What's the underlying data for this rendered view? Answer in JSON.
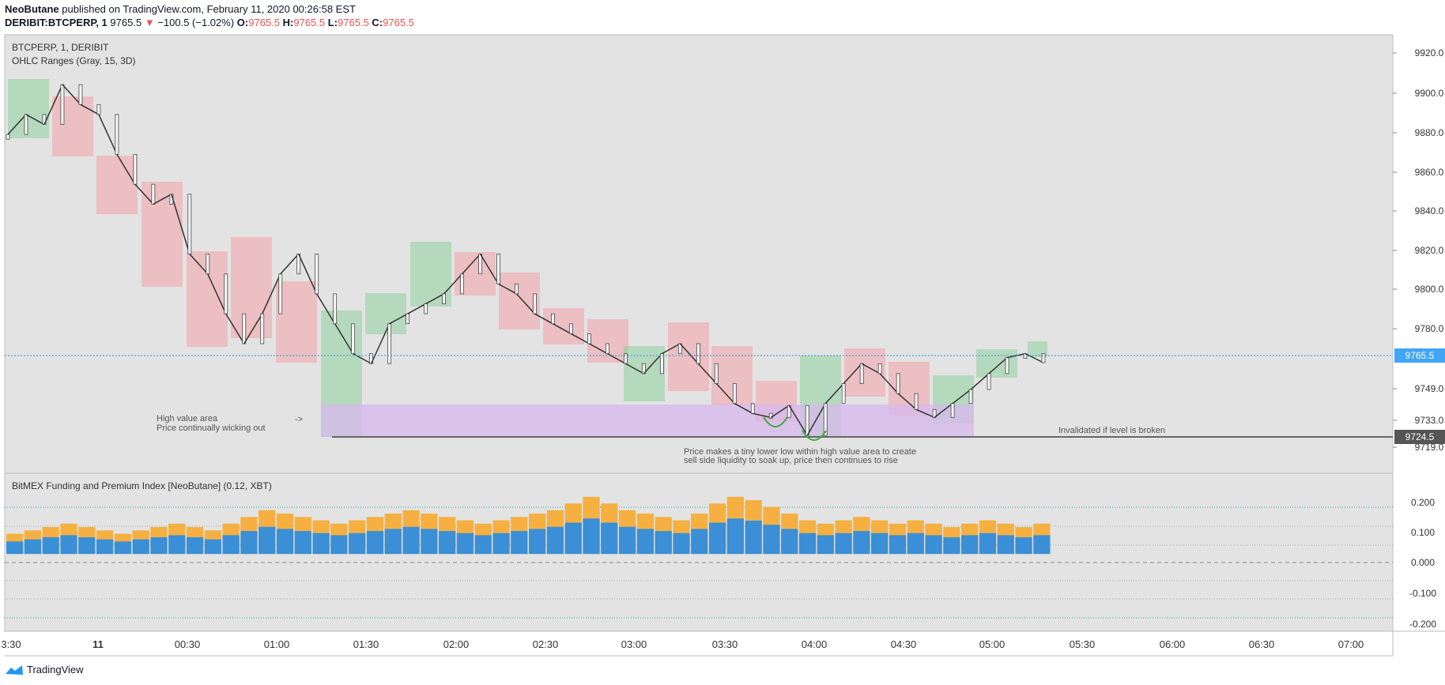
{
  "header": {
    "publisher": "NeoButane",
    "published_text": "published on TradingView.com, February 11, 2020 00:26:58 EST",
    "symbol": "DERIBIT:BTCPERP, 1",
    "last": "9765.5",
    "change": "−100.5 (−1.02%)",
    "o_label": "O:",
    "o_value": "9765.5",
    "h_label": "H:",
    "h_value": "9765.5",
    "l_label": "L:",
    "l_value": "9765.5",
    "c_label": "C:",
    "c_value": "9765.5"
  },
  "main_pane": {
    "title": "BTCPERP, 1, DERIBIT",
    "indicator": "OHLC Ranges (Gray, 15, 3D)",
    "price_ticks": [
      "9920.0",
      "9900.0",
      "9880.0",
      "9860.0",
      "9840.0",
      "9820.0",
      "9800.0",
      "9780.0",
      "9749.0",
      "9733.0",
      "9719.0"
    ],
    "last_price_badge": "9765.5",
    "level_badge": "9724.5",
    "annotations": {
      "hva_1": "High value area",
      "hva_2": "Price continually wicking out",
      "hva_arrow": "->",
      "lower_low_1": "Price makes a tiny lower low within high value area to create",
      "lower_low_2": "sell side liquidity to soak up, price then continues to rise",
      "invalidated": "Invalidated if level is broken"
    }
  },
  "sub_pane": {
    "title": "BitMEX Funding and Premium Index [NeoButane] (0.12, XBT)",
    "ticks": [
      "0.200",
      "0.100",
      "0.000",
      "-0.100",
      "-0.200"
    ]
  },
  "time_axis": [
    "3:30",
    "11",
    "00:30",
    "01:00",
    "01:30",
    "02:00",
    "02:30",
    "03:00",
    "03:30",
    "04:00",
    "04:30",
    "05:00",
    "05:30",
    "06:00",
    "06:30",
    "07:00"
  ],
  "footer": {
    "brand": "TradingView"
  },
  "colors": {
    "bg_pane": "#e3e3e3",
    "green_box": "#8fd19e",
    "red_box": "#f4a3a8",
    "purple_zone": "#d7b8ee",
    "funding_blue": "#3a8fd6",
    "funding_orange": "#f5b041",
    "last_price": "#42a5f5",
    "level": "#555555"
  },
  "chart_data": {
    "type": "line",
    "price_close": [
      9880,
      9890,
      9885,
      9905,
      9895,
      9890,
      9870,
      9855,
      9845,
      9850,
      9820,
      9810,
      9790,
      9775,
      9790,
      9810,
      9820,
      9800,
      9785,
      9770,
      9765,
      9785,
      9790,
      9795,
      9800,
      9810,
      9820,
      9805,
      9800,
      9790,
      9785,
      9780,
      9775,
      9770,
      9765,
      9760,
      9770,
      9775,
      9765,
      9755,
      9745,
      9740,
      9738,
      9744,
      9729,
      9745,
      9755,
      9765,
      9760,
      9750,
      9742,
      9738,
      9745,
      9752,
      9760,
      9768,
      9770,
      9765.5
    ],
    "price_ylim": [
      9710,
      9930
    ],
    "funding_xbt": [
      0.06,
      0.07,
      0.08,
      0.09,
      0.08,
      0.07,
      0.06,
      0.07,
      0.08,
      0.09,
      0.08,
      0.07,
      0.09,
      0.11,
      0.13,
      0.12,
      0.11,
      0.1,
      0.09,
      0.1,
      0.11,
      0.12,
      0.13,
      0.12,
      0.11,
      0.1,
      0.09,
      0.1,
      0.11,
      0.12,
      0.13,
      0.15,
      0.17,
      0.15,
      0.13,
      0.12,
      0.11,
      0.1,
      0.12,
      0.15,
      0.17,
      0.16,
      0.14,
      0.12,
      0.1,
      0.09,
      0.1,
      0.11,
      0.1,
      0.09,
      0.1,
      0.09,
      0.08,
      0.09,
      0.1,
      0.09,
      0.08,
      0.09
    ],
    "funding_ylim": [
      -0.23,
      0.24
    ]
  }
}
